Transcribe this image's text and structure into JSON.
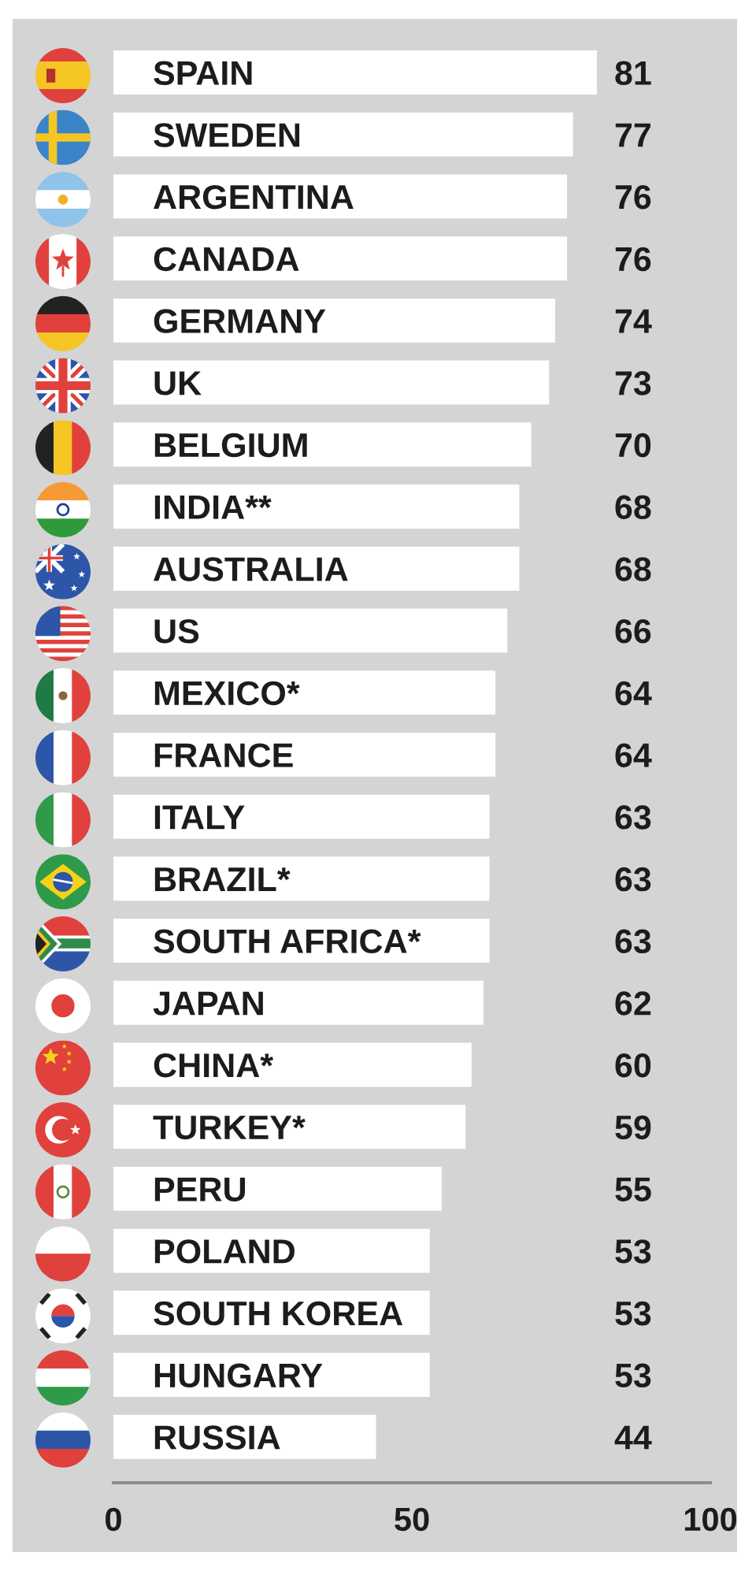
{
  "chart_data": {
    "type": "bar",
    "orientation": "horizontal",
    "categories": [
      "SPAIN",
      "SWEDEN",
      "ARGENTINA",
      "CANADA",
      "GERMANY",
      "UK",
      "BELGIUM",
      "INDIA**",
      "AUSTRALIA",
      "US",
      "MEXICO*",
      "FRANCE",
      "ITALY",
      "BRAZIL*",
      "SOUTH AFRICA*",
      "JAPAN",
      "CHINA*",
      "TURKEY*",
      "PERU",
      "POLAND",
      "SOUTH KOREA",
      "HUNGARY",
      "RUSSIA"
    ],
    "values": [
      81,
      77,
      76,
      76,
      74,
      73,
      70,
      68,
      68,
      66,
      64,
      64,
      63,
      63,
      63,
      62,
      60,
      59,
      55,
      53,
      53,
      53,
      44
    ],
    "color": "#ffffff",
    "xlim": [
      0,
      100
    ],
    "xticks": [
      0,
      50,
      100
    ],
    "data_labels": true
  }
}
